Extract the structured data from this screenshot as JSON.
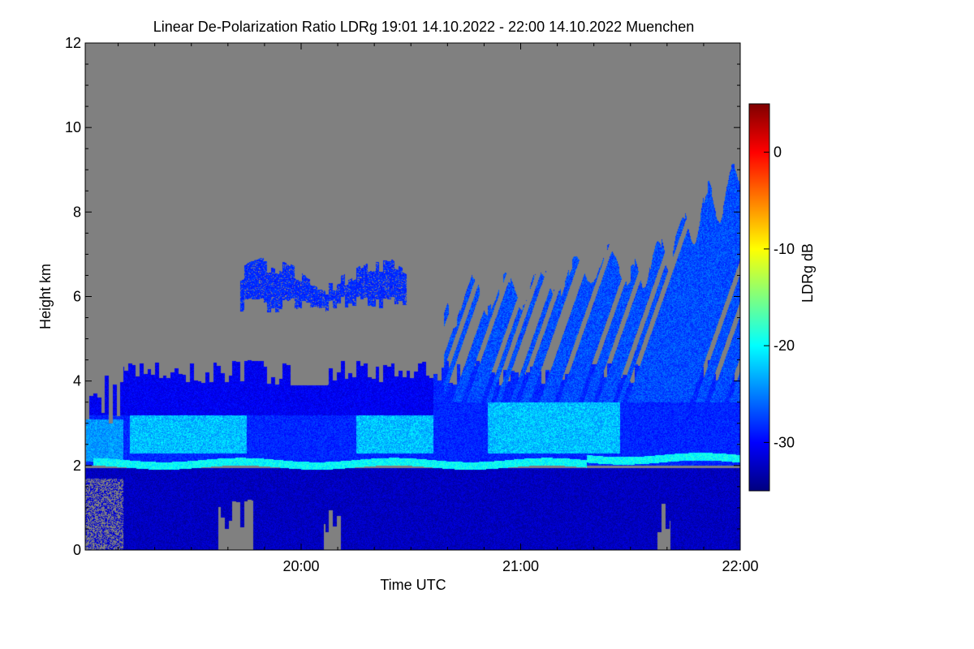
{
  "chart_data": {
    "type": "heatmap",
    "title": "Linear De-Polarization Ratio LDRg   19:01 14.10.2022 - 22:00 14.10.2022 Muenchen",
    "xlabel": "Time UTC",
    "ylabel": "Height km",
    "colorbar_label": "LDRg dB",
    "xlim_hours": [
      19.0167,
      22.0
    ],
    "ylim": [
      0,
      12
    ],
    "x_ticks": [
      {
        "value": 20.0,
        "label": "20:00"
      },
      {
        "value": 21.0,
        "label": "21:00"
      },
      {
        "value": 22.0,
        "label": "22:00"
      }
    ],
    "y_ticks": [
      {
        "value": 0,
        "label": "0"
      },
      {
        "value": 2,
        "label": "2"
      },
      {
        "value": 4,
        "label": "4"
      },
      {
        "value": 6,
        "label": "6"
      },
      {
        "value": 8,
        "label": "8"
      },
      {
        "value": 10,
        "label": "10"
      },
      {
        "value": 12,
        "label": "12"
      }
    ],
    "colorbar_range": [
      -35,
      5
    ],
    "colorbar_ticks": [
      {
        "value": 0,
        "label": "0"
      },
      {
        "value": -10,
        "label": "-10"
      },
      {
        "value": -20,
        "label": "-20"
      },
      {
        "value": -30,
        "label": "-30"
      }
    ],
    "no_signal_color": "#808080",
    "colormap": [
      "#00007f",
      "#0000ff",
      "#007fff",
      "#00ffff",
      "#7fff7f",
      "#ffff00",
      "#ff7f00",
      "#ff0000",
      "#7f0000"
    ],
    "features": [
      {
        "name": "melting-layer",
        "height_km": 2.1,
        "ldr_db": -20
      },
      {
        "name": "ice-cloud-lower",
        "t_start": 19.2,
        "t_end": 22.0,
        "base_km": 2.2,
        "top_km": 4.5,
        "ldr_db": -26
      },
      {
        "name": "ice-cloud-upper",
        "t_start": 19.7,
        "t_end": 20.5,
        "base_km": 5.8,
        "top_km": 6.8,
        "ldr_db": -30
      },
      {
        "name": "cirrus-fallstreaks",
        "t_start": 20.65,
        "t_end": 22.0,
        "base_km": 4.0,
        "top_km": 9.3,
        "ldr_db": -29
      },
      {
        "name": "rain-below-melting",
        "t_start": 19.2,
        "t_end": 22.0,
        "base_km": 0.0,
        "top_km": 1.9,
        "ldr_db": -33
      }
    ]
  }
}
